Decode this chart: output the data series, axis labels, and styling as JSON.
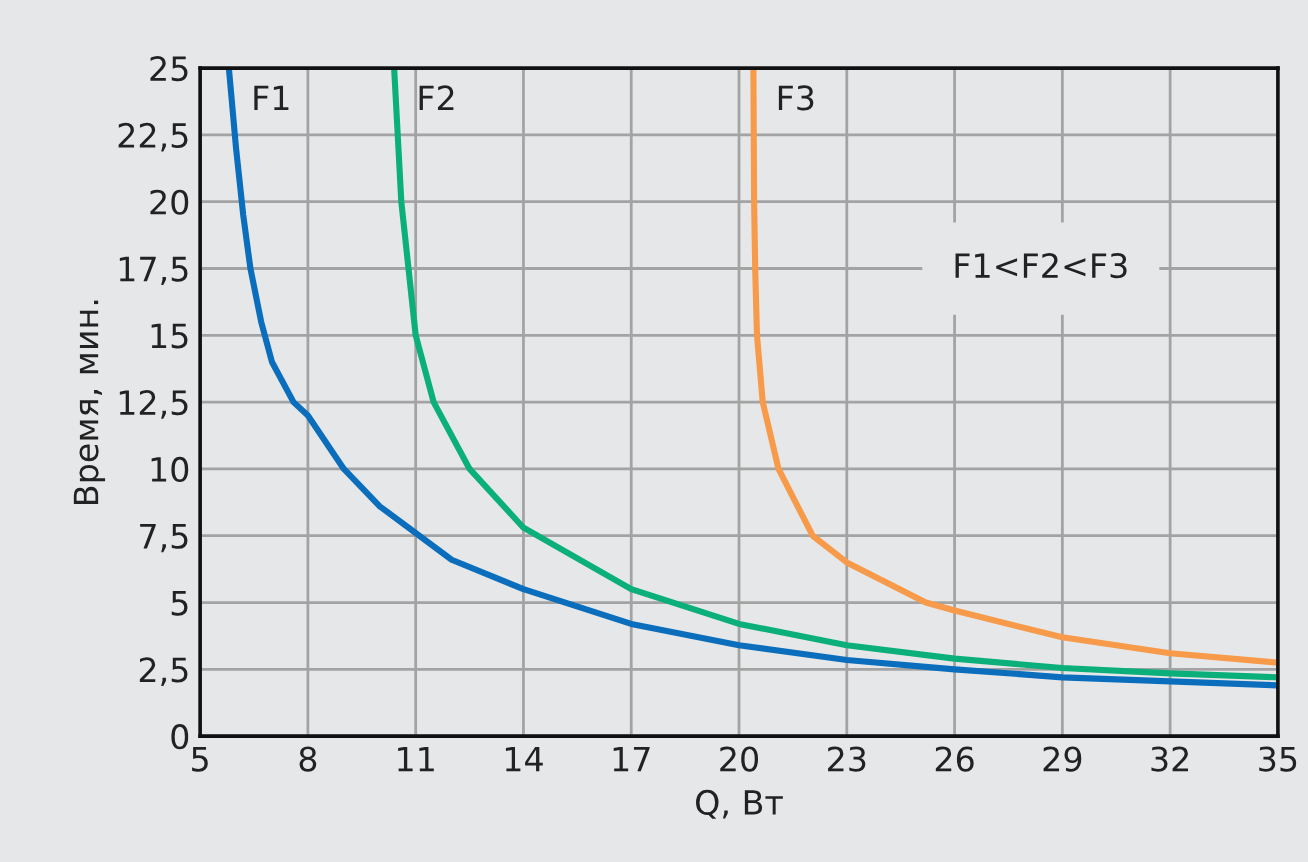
{
  "chart_data": {
    "type": "line",
    "xlabel": "Q, Вт",
    "ylabel": "Время, мин.",
    "xlim": [
      5,
      35
    ],
    "xticks": [
      5,
      8,
      11,
      14,
      17,
      20,
      23,
      26,
      29,
      32,
      35
    ],
    "ylim": [
      0,
      25
    ],
    "yticks": [
      0,
      {
        "value": 2.5,
        "label": "2,5"
      },
      5,
      {
        "value": 7.5,
        "label": "7,5"
      },
      10,
      {
        "value": 12.5,
        "label": "12,5"
      },
      15,
      {
        "value": 17.5,
        "label": "17,5"
      },
      20,
      {
        "value": 22.5,
        "label": "22,5"
      },
      25
    ],
    "grid": true,
    "legend": false,
    "marker": "none",
    "line_style": "solid",
    "annotations": [
      "F1<F2<F3"
    ],
    "series": [
      {
        "name": "F1",
        "color": "#0a6ebd",
        "x": [
          5.8,
          6.0,
          6.2,
          6.4,
          6.7,
          7.0,
          7.6,
          8,
          9,
          10,
          11,
          12,
          14,
          17,
          20,
          23,
          26,
          29,
          32,
          35
        ],
        "values": [
          25,
          22,
          19.5,
          17.5,
          15.5,
          14,
          12.5,
          12,
          10,
          8.6,
          7.6,
          6.6,
          5.5,
          4.2,
          3.4,
          2.85,
          2.5,
          2.2,
          2.05,
          1.9
        ]
      },
      {
        "name": "F2",
        "color": "#0aaf7a",
        "x": [
          10.4,
          10.5,
          10.6,
          10.8,
          11,
          11.5,
          12.5,
          14,
          17,
          20,
          23,
          26,
          29,
          32,
          35
        ],
        "values": [
          25,
          22.5,
          20,
          17.5,
          15,
          12.5,
          10,
          7.8,
          5.5,
          4.2,
          3.4,
          2.9,
          2.55,
          2.35,
          2.2
        ]
      },
      {
        "name": "F3",
        "color": "#f79a4a",
        "x": [
          20.4,
          20.42,
          20.45,
          20.5,
          20.66,
          21.1,
          22.05,
          23,
          25.2,
          26,
          29,
          32,
          35
        ],
        "values": [
          25,
          20,
          17.5,
          15,
          12.5,
          10,
          7.5,
          6.5,
          5,
          4.7,
          3.7,
          3.1,
          2.75
        ]
      }
    ]
  }
}
